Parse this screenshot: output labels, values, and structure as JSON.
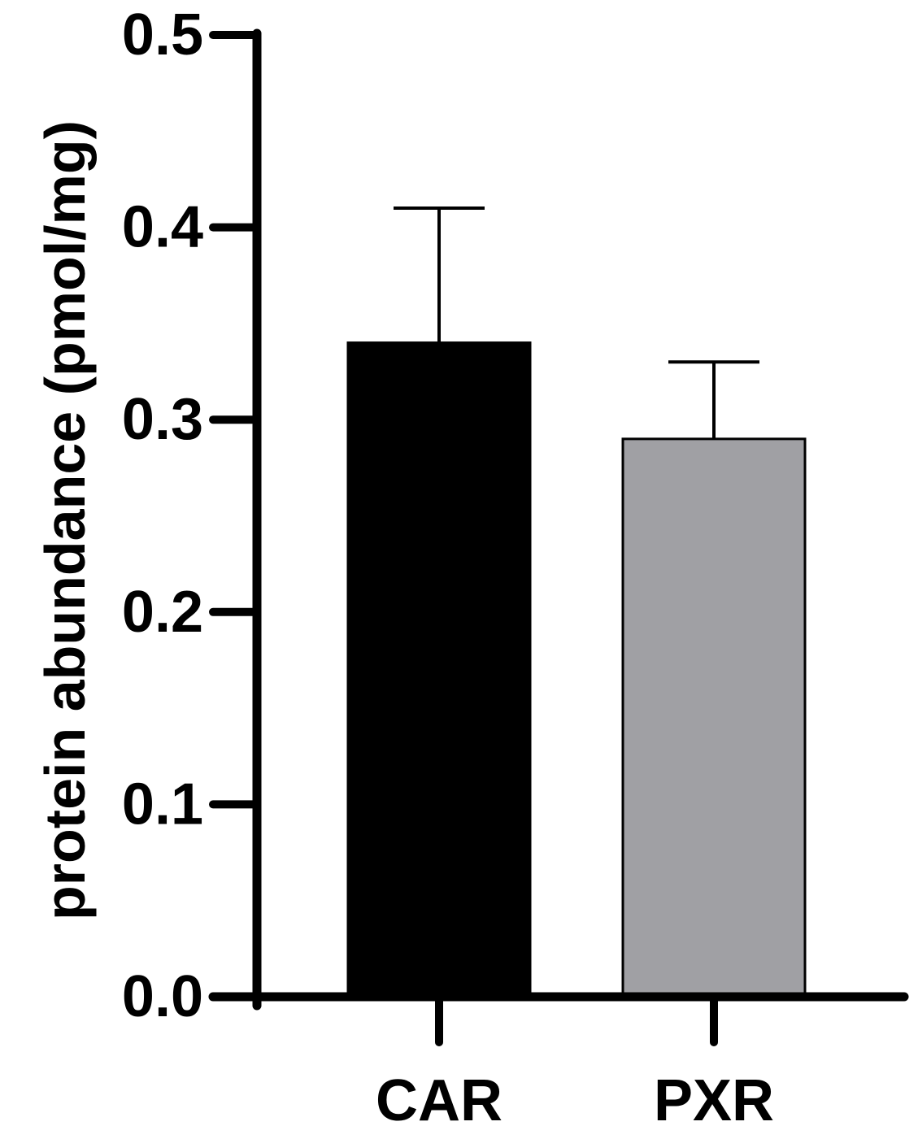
{
  "chart_data": {
    "type": "bar",
    "categories": [
      "CAR",
      "PXR"
    ],
    "values": [
      0.34,
      0.29
    ],
    "error_upper": [
      0.41,
      0.33
    ],
    "colors": [
      "#000000",
      "#a0a0a4"
    ],
    "title": "",
    "xlabel": "",
    "ylabel": "protein abundance (pmol/mg)",
    "ylim": [
      0.0,
      0.5
    ],
    "yticks": [
      "0.0",
      "0.1",
      "0.2",
      "0.3",
      "0.4",
      "0.5"
    ],
    "grid": false,
    "legend": "none"
  }
}
